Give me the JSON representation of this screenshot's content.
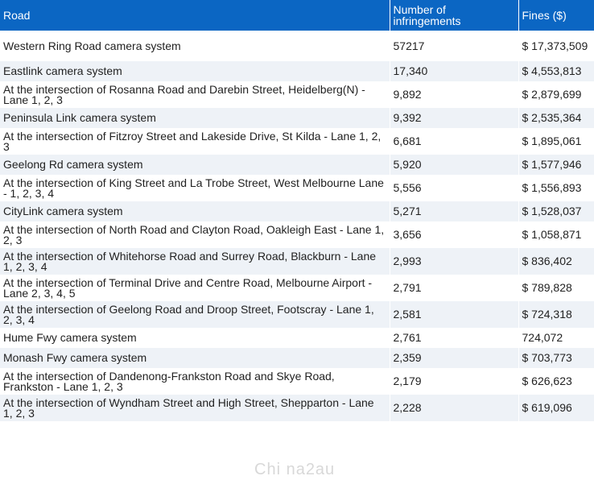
{
  "table": {
    "headers": [
      "Road",
      "Number of infringements",
      "Fines ($)"
    ],
    "rows": [
      {
        "road": "Western Ring Road camera system",
        "count": "57217",
        "fines": "$ 17,373,509"
      },
      {
        "road": "Eastlink camera system",
        "count": "17,340",
        "fines": "$ 4,553,813"
      },
      {
        "road": "At the intersection of Rosanna Road and Darebin Street, Heidelberg(N) - Lane 1, 2, 3",
        "count": "9,892",
        "fines": "$ 2,879,699"
      },
      {
        "road": "Peninsula Link camera system",
        "count": "9,392",
        "fines": "$ 2,535,364"
      },
      {
        "road": "At the intersection of Fitzroy Street and Lakeside Drive, St Kilda - Lane 1, 2, 3",
        "count": "6,681",
        "fines": "$ 1,895,061"
      },
      {
        "road": "Geelong Rd camera system",
        "count": "5,920",
        "fines": "$ 1,577,946"
      },
      {
        "road": "At the intersection of King Street and La Trobe Street, West Melbourne Lane - 1, 2, 3, 4",
        "count": "5,556",
        "fines": "$ 1,556,893"
      },
      {
        "road": "CityLink camera system",
        "count": "5,271",
        "fines": "$ 1,528,037"
      },
      {
        "road": "At the intersection of North Road and Clayton Road, Oakleigh East - Lane 1, 2, 3",
        "count": "3,656",
        "fines": "$ 1,058,871"
      },
      {
        "road": "At the intersection of Whitehorse Road and Surrey Road, Blackburn - Lane 1, 2, 3, 4",
        "count": "2,993",
        "fines": "$ 836,402"
      },
      {
        "road": "At the intersection of Terminal Drive and Centre Road, Melbourne Airport - Lane 2, 3, 4, 5",
        "count": "2,791",
        "fines": "$ 789,828"
      },
      {
        "road": "At the intersection of Geelong Road and Droop Street, Footscray - Lane 1, 2, 3, 4",
        "count": "2,581",
        "fines": "$ 724,318"
      },
      {
        "road": "Hume Fwy camera system",
        "count": "2,761",
        "fines": "724,072"
      },
      {
        "road": "Monash Fwy camera system",
        "count": "2,359",
        "fines": "$ 703,773"
      },
      {
        "road": "At the intersection of Dandenong-Frankston Road and Skye Road, Frankston - Lane 1, 2, 3",
        "count": "2,179",
        "fines": "$ 626,623"
      },
      {
        "road": "At the intersection of Wyndham Street and High Street, Shepparton - Lane 1, 2, 3",
        "count": "2,228",
        "fines": "$ 619,096"
      }
    ]
  },
  "watermark": "Chi na2au"
}
